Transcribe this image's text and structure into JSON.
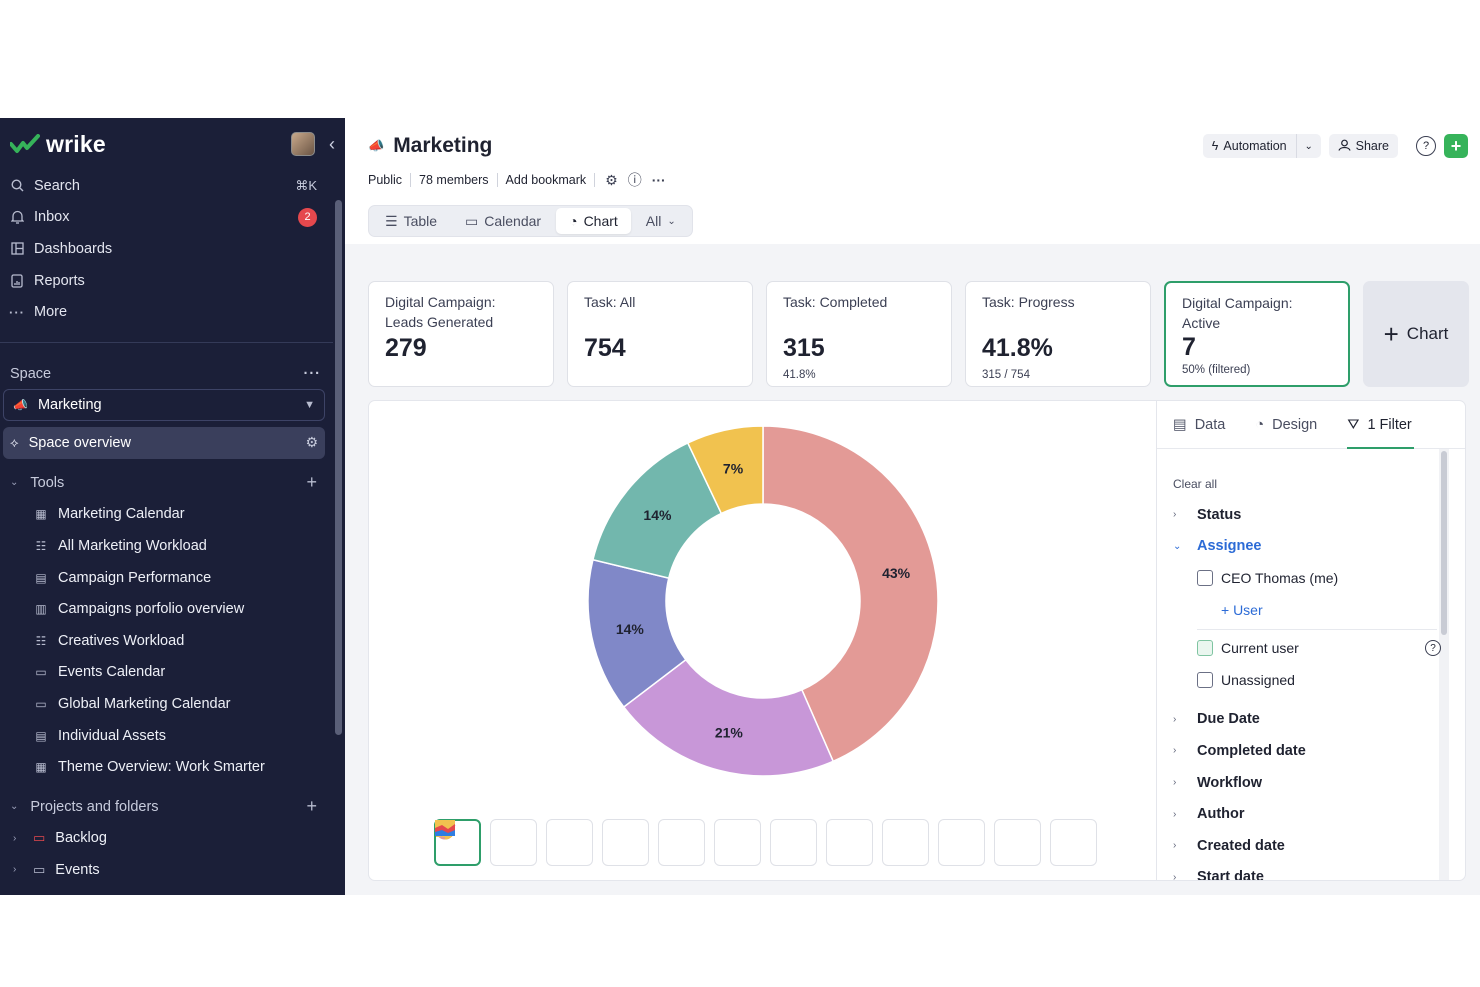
{
  "sidebar": {
    "brand": "wrike",
    "nav": [
      {
        "label": "Search",
        "icon": "search-icon",
        "shortcut": "⌘K"
      },
      {
        "label": "Inbox",
        "icon": "bell-icon",
        "badge": "2"
      },
      {
        "label": "Dashboards",
        "icon": "dashboard-icon"
      },
      {
        "label": "Reports",
        "icon": "report-icon"
      },
      {
        "label": "More",
        "icon": "more-icon"
      }
    ],
    "space_label": "Space",
    "space_name": "Marketing",
    "overview_label": "Space overview",
    "tools_label": "Tools",
    "tools": [
      {
        "label": "Marketing Calendar"
      },
      {
        "label": "All Marketing Workload"
      },
      {
        "label": "Campaign Performance"
      },
      {
        "label": "Campaigns porfolio overview"
      },
      {
        "label": "Creatives Workload"
      },
      {
        "label": "Events Calendar"
      },
      {
        "label": "Global Marketing Calendar"
      },
      {
        "label": "Individual Assets"
      },
      {
        "label": "Theme Overview: Work Smarter"
      }
    ],
    "projects_label": "Projects and folders",
    "projects": [
      {
        "label": "Backlog",
        "color": "#e5484d"
      },
      {
        "label": "Events",
        "color": "#b8bccf"
      }
    ]
  },
  "header": {
    "title": "Marketing",
    "visibility": "Public",
    "members": "78 members",
    "bookmark": "Add bookmark",
    "automation_label": "Automation",
    "share_label": "Share",
    "help": "?",
    "add": "+"
  },
  "views": [
    {
      "label": "Table",
      "icon": "table-icon"
    },
    {
      "label": "Calendar",
      "icon": "calendar-icon"
    },
    {
      "label": "Chart",
      "icon": "chart-icon",
      "active": true
    },
    {
      "label": "All",
      "icon": "chevron-down-icon"
    }
  ],
  "cards": [
    {
      "label": "Digital Campaign: Leads Generated",
      "value": "279",
      "sub": ""
    },
    {
      "label": "Task: All",
      "value": "754",
      "sub": ""
    },
    {
      "label": "Task: Completed",
      "value": "315",
      "sub": "41.8%"
    },
    {
      "label": "Task: Progress",
      "value": "41.8%",
      "sub": "315 / 754"
    },
    {
      "label": "Digital Campaign: Active",
      "value": "7",
      "sub": "50% (filtered)",
      "selected": true
    }
  ],
  "add_chart_label": "Chart",
  "chart_data": {
    "type": "pie",
    "donut": true,
    "slices": [
      {
        "label": "43%",
        "value": 43,
        "color": "#e39a96"
      },
      {
        "label": "21%",
        "value": 21,
        "color": "#c897d8"
      },
      {
        "label": "14%",
        "value": 14,
        "color": "#8088c8"
      },
      {
        "label": "14%",
        "value": 14,
        "color": "#72b7ad"
      },
      {
        "label": "7%",
        "value": 7,
        "color": "#f1c24f"
      }
    ]
  },
  "chart_types": [
    "donut-chart-icon",
    "bar-chart-icon",
    "stacked-bar-chart-icon",
    "stacked-column-icon",
    "horizontal-bar-icon",
    "horizontal-grouped-bar-icon",
    "horizontal-stacked-bar-icon",
    "line-chart-icon",
    "percent-stacked-column-icon",
    "area-chart-icon",
    "stacked-area-icon",
    "percent-area-icon"
  ],
  "side_tabs": [
    {
      "label": "Data",
      "icon": "data-icon"
    },
    {
      "label": "Design",
      "icon": "design-icon"
    },
    {
      "label": "1 Filter",
      "icon": "filter-icon",
      "active": true
    }
  ],
  "filters": {
    "clear_all": "Clear all",
    "status": "Status",
    "assignee": "Assignee",
    "ceo": "CEO Thomas (me)",
    "add_user": "+ User",
    "current_user": "Current user",
    "unassigned": "Unassigned",
    "due_date": "Due Date",
    "completed_date": "Completed date",
    "workflow": "Workflow",
    "author": "Author",
    "created_date": "Created date",
    "start_date": "Start date"
  }
}
